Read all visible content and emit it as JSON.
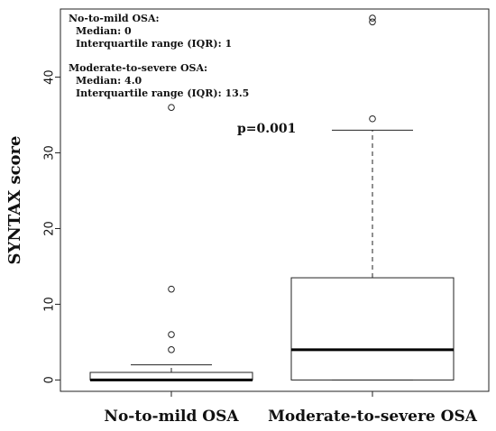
{
  "chart_data": {
    "type": "box",
    "ylabel": "SYNTAX score",
    "ylim": [
      -1.5,
      49
    ],
    "yticks": [
      0,
      10,
      20,
      30,
      40
    ],
    "categories": [
      "No-to-mild OSA",
      "Moderate-to-severe OSA"
    ],
    "boxes": [
      {
        "name": "No-to-mild OSA",
        "whisker_low": 0,
        "q1": 0,
        "median": 0,
        "q3": 1,
        "whisker_high": 2,
        "outliers": [
          4,
          6,
          12,
          36
        ]
      },
      {
        "name": "Moderate-to-severe OSA",
        "whisker_low": 0,
        "q1": 0,
        "median": 4,
        "q3": 13.5,
        "whisker_high": 33,
        "outliers": [
          34.5,
          47.3,
          47.8
        ]
      }
    ],
    "annotations": {
      "group1_title": "No-to-mild OSA:",
      "group1_median": "Median: 0",
      "group1_iqr": "Interquartile range (IQR): 1",
      "group2_title": "Moderate-to-severe OSA:",
      "group2_median": "Median: 4.0",
      "group2_iqr": "Interquartile range (IQR): 13.5",
      "pvalue": "p=0.001"
    }
  }
}
